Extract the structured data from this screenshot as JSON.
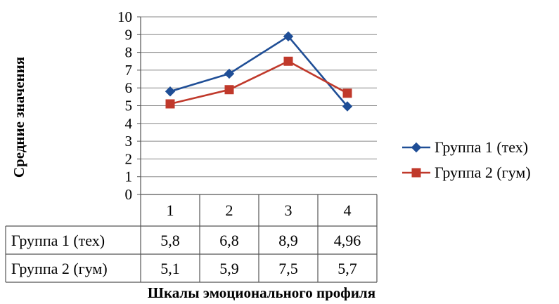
{
  "chart_data": {
    "type": "line",
    "categories": [
      "1",
      "2",
      "3",
      "4"
    ],
    "series": [
      {
        "name": "Группа 1 (тех)",
        "values": [
          5.8,
          6.8,
          8.9,
          4.96
        ],
        "labels": [
          "5,8",
          "6,8",
          "8,9",
          "4,96"
        ],
        "color": "#1f4e96",
        "marker": "diamond"
      },
      {
        "name": "Группа 2 (гум)",
        "values": [
          5.1,
          5.9,
          7.5,
          5.7
        ],
        "labels": [
          "5,1",
          "5,9",
          "7,5",
          "5,7"
        ],
        "color": "#c0392b",
        "marker": "square"
      }
    ],
    "ylabel": "Средние значения",
    "xlabel": "Шкалы эмоционального профиля",
    "ylim": [
      0,
      10
    ],
    "yticks": [
      "0",
      "1",
      "2",
      "3",
      "4",
      "5",
      "6",
      "7",
      "8",
      "9",
      "10"
    ],
    "grid": true,
    "legend": "right",
    "data_table": true
  }
}
